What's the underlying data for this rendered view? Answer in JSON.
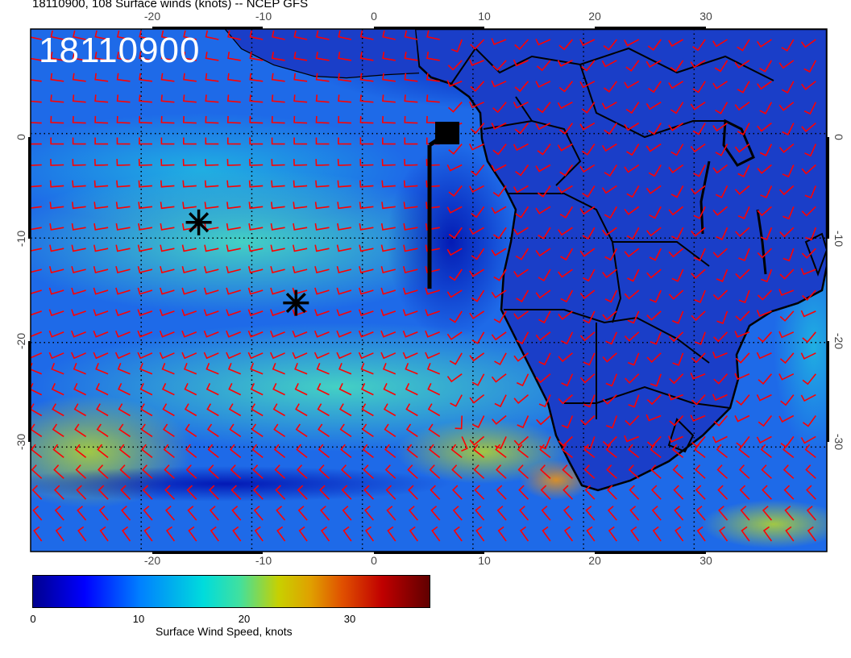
{
  "title": "18110900, 108 Surface winds (knots) -- NCEP GFS",
  "stamp": "18110900",
  "lon_ticks": [
    "-20",
    "-10",
    "0",
    "10",
    "20",
    "30"
  ],
  "lat_ticks": [
    "0",
    "-10",
    "-20",
    "-30"
  ],
  "colorbar": {
    "title": "Surface Wind Speed, knots",
    "labels": [
      "0",
      "10",
      "20",
      "30"
    ],
    "colors": [
      "#00008f",
      "#0000ff",
      "#0080ff",
      "#00dcdc",
      "#40e0a0",
      "#c8d000",
      "#e0a000",
      "#e05000",
      "#c00000",
      "#600000"
    ]
  },
  "map": {
    "lon_range": [
      -30,
      42
    ],
    "lat_range": [
      -40,
      10
    ],
    "grid_lons": [
      -20,
      -10,
      0,
      10,
      20,
      30
    ],
    "grid_lats": [
      0,
      -10,
      -20,
      -30
    ],
    "barb_color": "#ff0000",
    "markers": [
      {
        "type": "asterisk",
        "lon": -14.8,
        "lat": -8.5
      },
      {
        "type": "asterisk",
        "lon": -6.0,
        "lat": -16.2
      }
    ],
    "track": {
      "lon": 5.0,
      "lat_start": 1.0,
      "lat_end": -15.0,
      "box_lon": 7.0,
      "box_lat": 1.5
    }
  }
}
